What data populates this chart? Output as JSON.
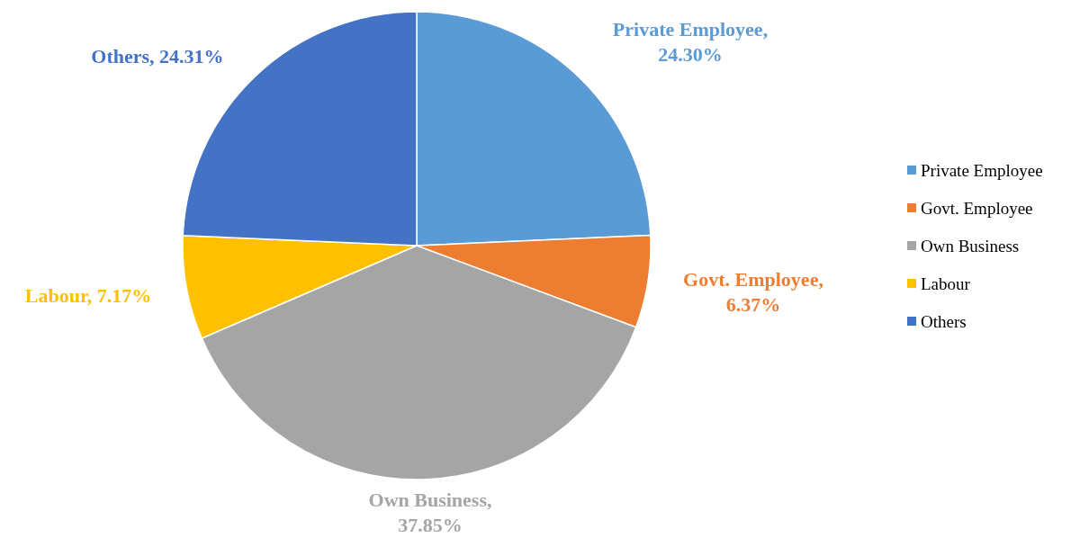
{
  "chart_data": {
    "type": "pie",
    "categories": [
      "Private Employee",
      "Govt. Employee",
      "Own Business",
      "Labour",
      "Others"
    ],
    "values": [
      24.3,
      6.37,
      37.85,
      7.17,
      24.31
    ],
    "colors": [
      "#5b9bd5",
      "#ed7d31",
      "#a5a5a5",
      "#ffc000",
      "#4472c4"
    ],
    "value_labels": [
      "Private Employee, 24.30%",
      "Govt. Employee, 6.37%",
      "Own Business, 37.85%",
      "Labour, 7.17%",
      "Others, 24.31%"
    ],
    "legend": "right"
  }
}
